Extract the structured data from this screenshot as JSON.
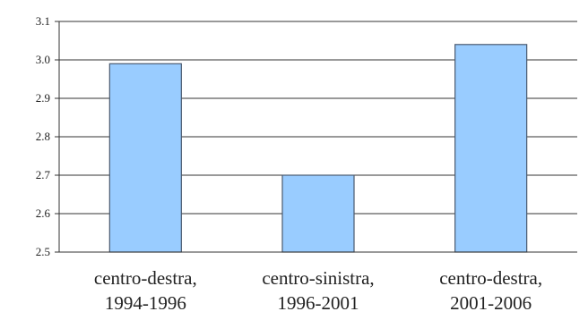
{
  "chart_data": {
    "type": "bar",
    "title": "",
    "xlabel": "",
    "ylabel": "",
    "categories": [
      [
        "centro-destra,",
        "1994-1996"
      ],
      [
        "centro-sinistra,",
        "1996-2001"
      ],
      [
        "centro-destra,",
        "2001-2006"
      ]
    ],
    "values": [
      2.99,
      2.7,
      3.04
    ],
    "ylim": [
      2.5,
      3.1
    ],
    "yticks": [
      2.5,
      2.6,
      2.7,
      2.8,
      2.9,
      3.0,
      3.1
    ],
    "ytick_labels": [
      "2.5",
      "2.6",
      "2.7",
      "2.8",
      "2.9",
      "3.0",
      "3.1"
    ],
    "grid": true,
    "legend": "none",
    "colors": {
      "bar_fill": "#99ccff",
      "bar_stroke": "#4a5a70",
      "grid": "#333333",
      "axis": "#333333"
    }
  }
}
